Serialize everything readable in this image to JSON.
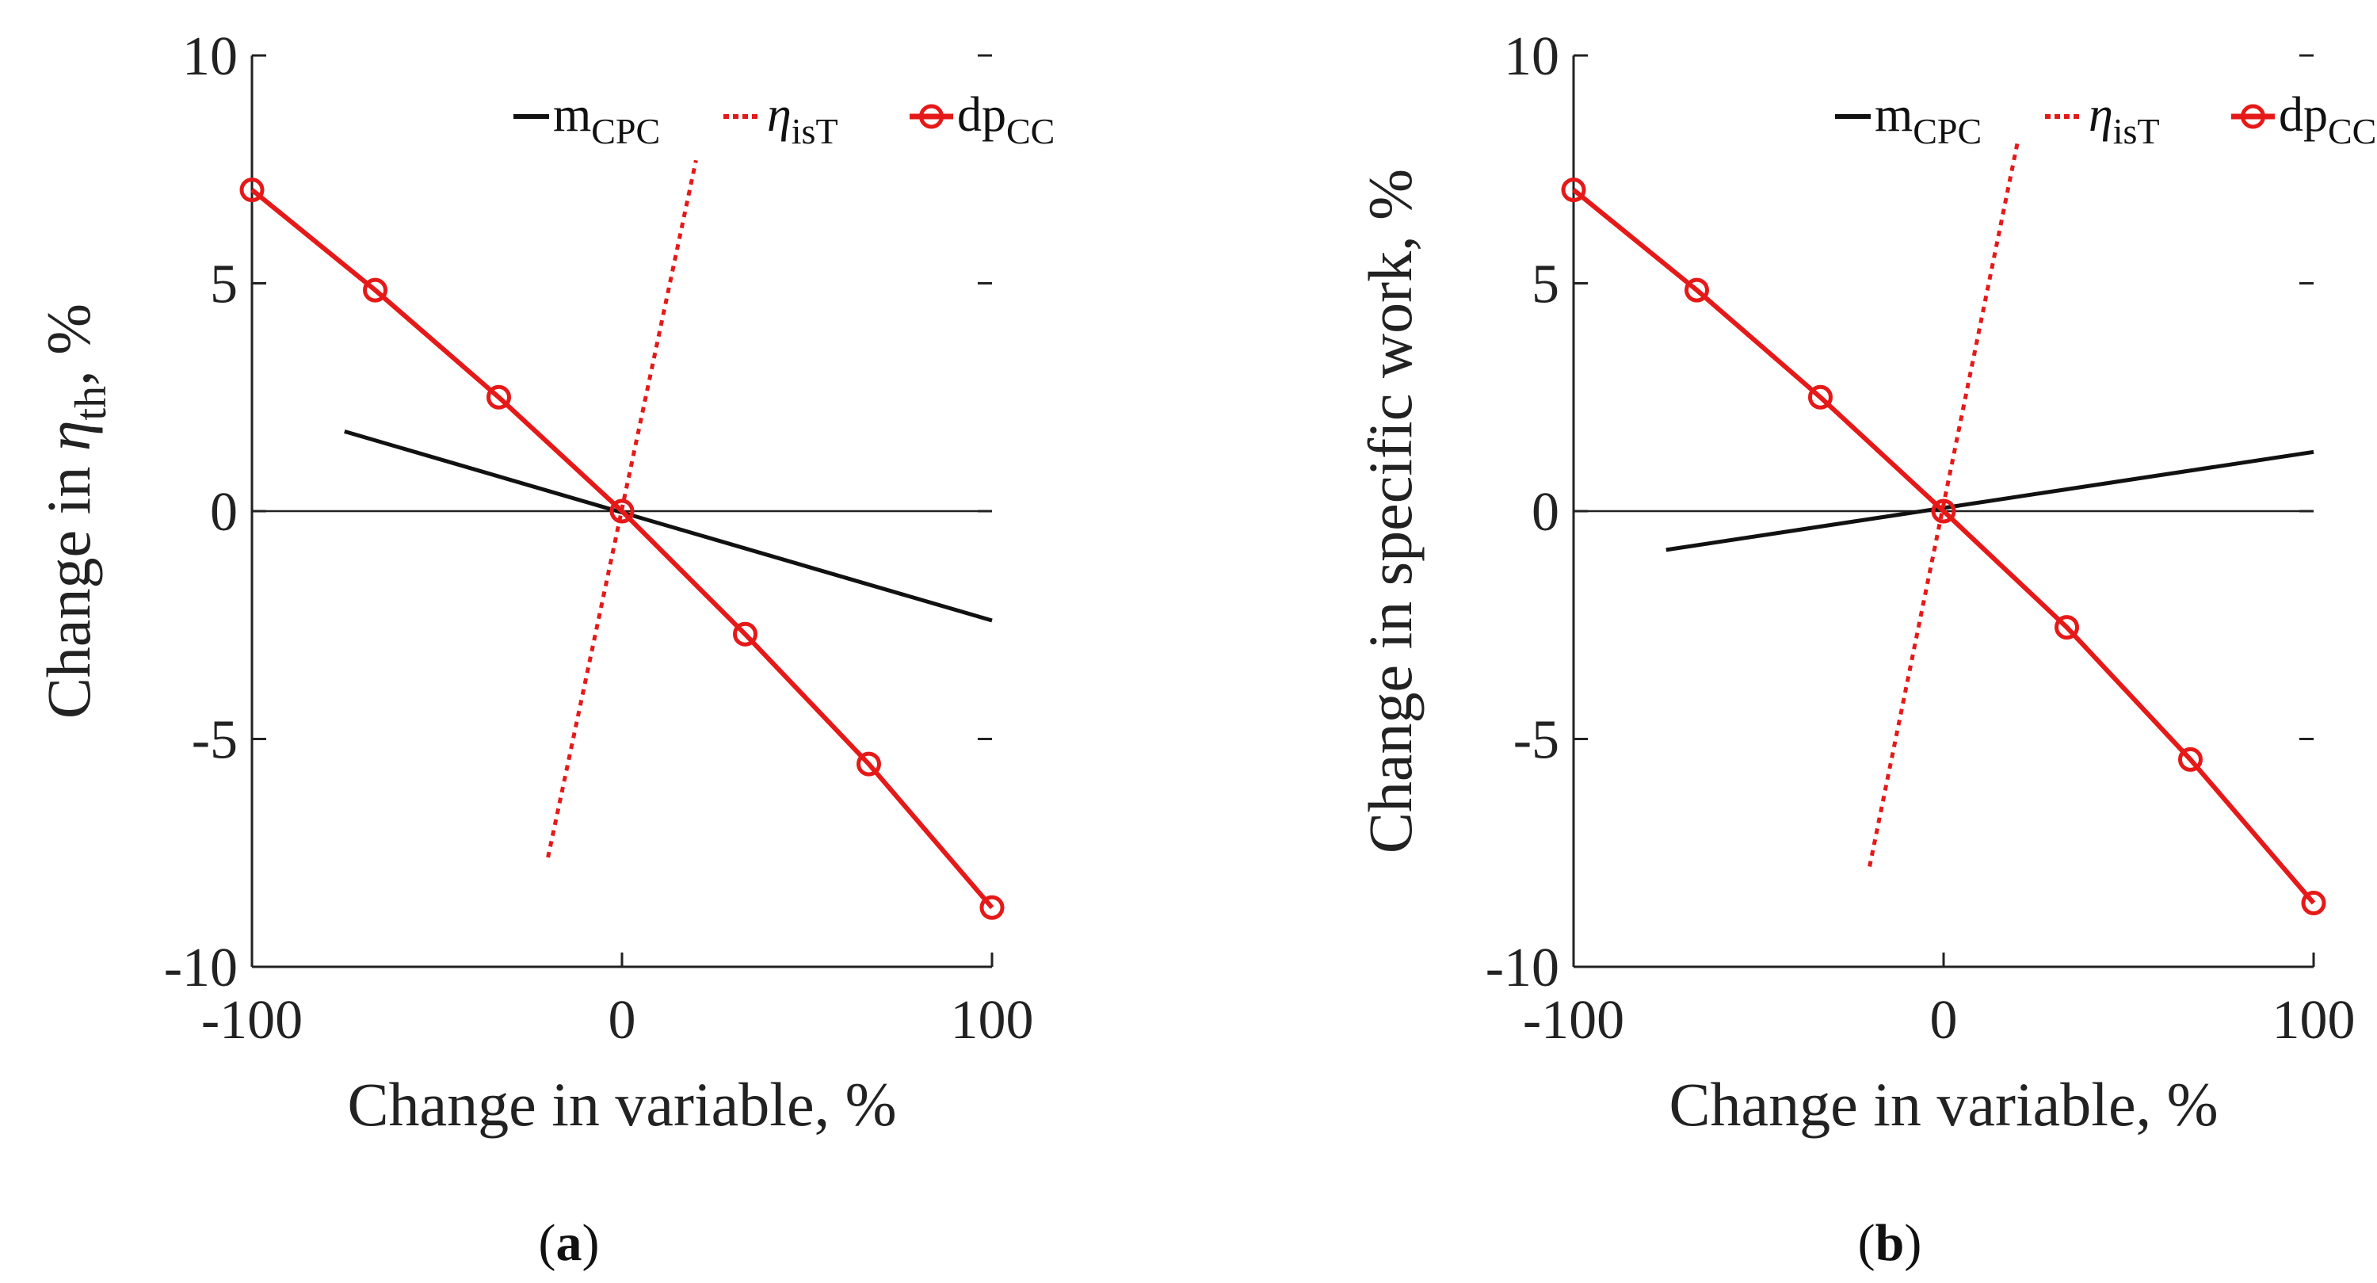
{
  "colors": {
    "black": "#111111",
    "red": "#e61919",
    "axis": "#222222"
  },
  "legend": [
    {
      "key": "m_cpc",
      "base": "m",
      "sub": "CPC",
      "style": "solid-black"
    },
    {
      "key": "eta_ist",
      "base": "η",
      "sub": "isT",
      "style": "dotted-red"
    },
    {
      "key": "dp_cc",
      "base": "dp",
      "sub": "CC",
      "style": "solid-red-circle"
    }
  ],
  "chart_data": [
    {
      "type": "line",
      "panel": "a",
      "caption": {
        "open": "(",
        "letter": "a",
        "close": ")"
      },
      "xlabel": "Change in variable, %",
      "ylabel": {
        "prefix": "Change in ",
        "symbol": "η",
        "sub": "th",
        "suffix": ", %"
      },
      "xlim": [
        -100,
        100
      ],
      "ylim": [
        -10,
        10
      ],
      "xticks": [
        "-100",
        "0",
        "100"
      ],
      "yticks": [
        "10",
        "5",
        "0",
        "-5",
        "-10"
      ],
      "series": [
        {
          "name": "m_CPC",
          "x": [
            -75,
            100
          ],
          "y": [
            1.75,
            -2.4
          ]
        },
        {
          "name": "η_isT",
          "x": [
            -20,
            20
          ],
          "y": [
            -7.6,
            7.7
          ]
        },
        {
          "name": "dp_CC",
          "x": [
            -100,
            -66.7,
            -33.3,
            0,
            33.3,
            66.7,
            100
          ],
          "y": [
            7.05,
            4.85,
            2.5,
            0,
            -2.7,
            -5.55,
            -8.7
          ]
        }
      ]
    },
    {
      "type": "line",
      "panel": "b",
      "caption": {
        "open": "(",
        "letter": "b",
        "close": ")"
      },
      "xlabel": "Change in variable, %",
      "ylabel": {
        "prefix": "Change in specific work, %",
        "symbol": "",
        "sub": "",
        "suffix": ""
      },
      "xlim": [
        -100,
        100
      ],
      "ylim": [
        -10,
        10
      ],
      "xticks": [
        "-100",
        "0",
        "100"
      ],
      "yticks": [
        "10",
        "5",
        "0",
        "-5",
        "-10"
      ],
      "series": [
        {
          "name": "m_CPC",
          "x": [
            -75,
            100
          ],
          "y": [
            -0.85,
            1.3
          ]
        },
        {
          "name": "η_isT",
          "x": [
            -20,
            20
          ],
          "y": [
            -7.8,
            8.1
          ]
        },
        {
          "name": "dp_CC",
          "x": [
            -100,
            -66.7,
            -33.3,
            0,
            33.3,
            66.7,
            100
          ],
          "y": [
            7.05,
            4.85,
            2.5,
            0,
            -2.55,
            -5.45,
            -8.6
          ]
        }
      ]
    }
  ]
}
